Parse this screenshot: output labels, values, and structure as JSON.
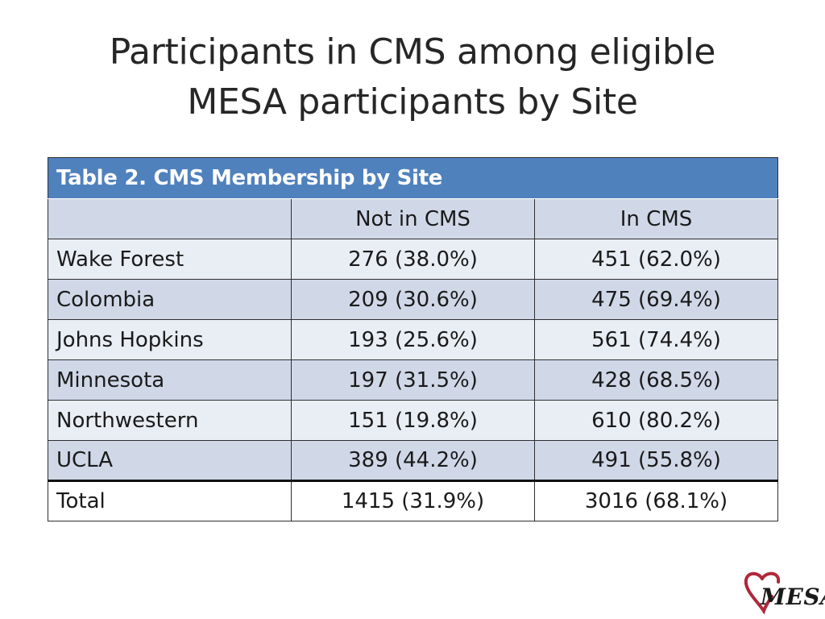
{
  "slide": {
    "title_line1": "Participants in CMS among eligible",
    "title_line2": "MESA participants by Site"
  },
  "table": {
    "caption": "Table 2. CMS  Membership by Site",
    "headers": [
      "",
      "Not in CMS",
      "In CMS"
    ],
    "rows": [
      {
        "site": "Wake Forest",
        "not_in_cms": "276 (38.0%)",
        "in_cms": "451 (62.0%)"
      },
      {
        "site": "Colombia",
        "not_in_cms": "209 (30.6%)",
        "in_cms": "475 (69.4%)"
      },
      {
        "site": "Johns Hopkins",
        "not_in_cms": "193 (25.6%)",
        "in_cms": "561 (74.4%)"
      },
      {
        "site": "Minnesota",
        "not_in_cms": "197 (31.5%)",
        "in_cms": "428 (68.5%)"
      },
      {
        "site": "Northwestern",
        "not_in_cms": "151 (19.8%)",
        "in_cms": "610 (80.2%)"
      },
      {
        "site": "UCLA",
        "not_in_cms": "389 (44.2%)",
        "in_cms": "491 (55.8%)"
      }
    ],
    "total": {
      "site": "Total",
      "not_in_cms": "1415 (31.9%)",
      "in_cms": "3016 (68.1%)"
    }
  },
  "logo": {
    "text": "MESA",
    "icon": "heart-icon",
    "color": "#b0283a"
  },
  "colors": {
    "header_blue": "#4f81bd",
    "row_dark": "#d0d8e8",
    "row_light": "#e9edf4"
  }
}
